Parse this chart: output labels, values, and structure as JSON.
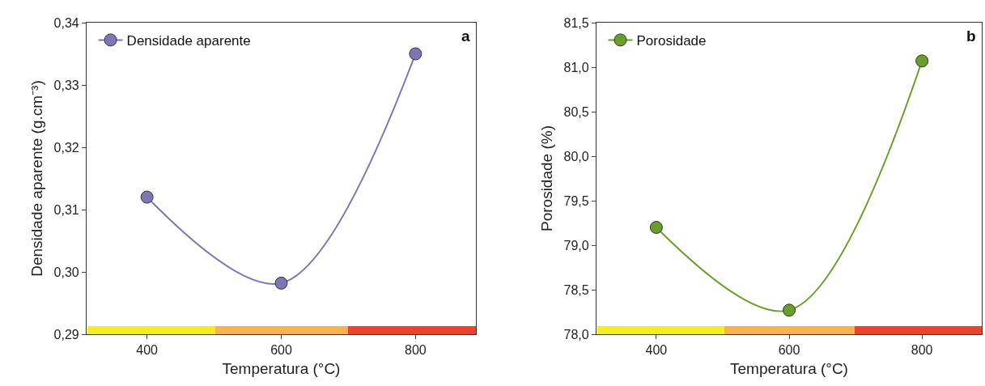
{
  "chart_data": [
    {
      "type": "line",
      "xlabel": "Temperatura (°C)",
      "ylabel": "Densidade aparente (g.cm⁻³)",
      "annotations": [
        "a"
      ],
      "x": [
        400,
        600,
        800
      ],
      "series": [
        {
          "name": "Densidade aparente",
          "color": "#7b76b5",
          "values": [
            0.312,
            0.2982,
            0.335
          ]
        }
      ],
      "xlim": [
        310,
        890
      ],
      "xticks": [
        400,
        600,
        800
      ],
      "ylim": [
        0.29,
        0.34
      ],
      "yticks": [
        {
          "value": 0.29,
          "label": "0,29"
        },
        {
          "value": 0.3,
          "label": "0,30"
        },
        {
          "value": 0.31,
          "label": "0,31"
        },
        {
          "value": 0.32,
          "label": "0,32"
        },
        {
          "value": 0.33,
          "label": "0,33"
        },
        {
          "value": 0.34,
          "label": "0,34"
        }
      ],
      "marker": "circle",
      "legend": "top left"
    },
    {
      "type": "line",
      "xlabel": "Temperatura (°C)",
      "ylabel": "Porosidade (%)",
      "annotations": [
        "b"
      ],
      "x": [
        400,
        600,
        800
      ],
      "series": [
        {
          "name": "Porosidade",
          "color": "#6a9e2a",
          "values": [
            79.2,
            78.27,
            81.07
          ]
        }
      ],
      "xlim": [
        310,
        890
      ],
      "xticks": [
        400,
        600,
        800
      ],
      "ylim": [
        78.0,
        81.5
      ],
      "yticks": [
        {
          "value": 78.0,
          "label": "78,0"
        },
        {
          "value": 78.5,
          "label": "78,5"
        },
        {
          "value": 79.0,
          "label": "79,0"
        },
        {
          "value": 79.5,
          "label": "79,5"
        },
        {
          "value": 80.0,
          "label": "80,0"
        },
        {
          "value": 80.5,
          "label": "80,5"
        },
        {
          "value": 81.0,
          "label": "81,0"
        },
        {
          "value": 81.5,
          "label": "81,5"
        }
      ],
      "marker": "circle",
      "legend": "top left"
    }
  ]
}
